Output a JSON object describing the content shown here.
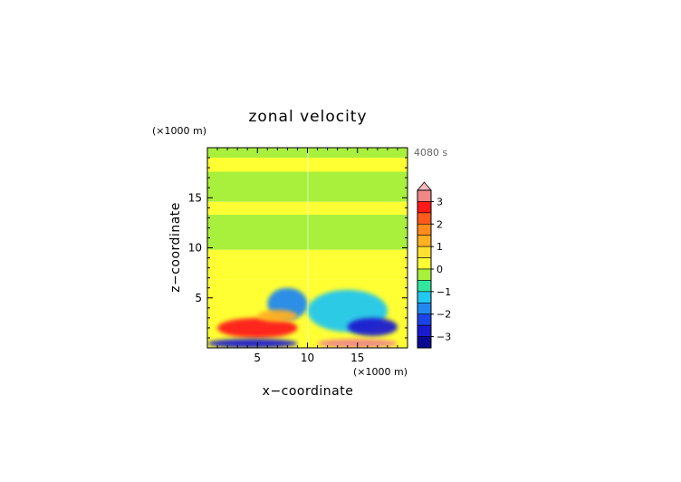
{
  "chart_data": {
    "type": "heatmap",
    "title": "zonal velocity",
    "xlabel": "x−coordinate",
    "ylabel": "z−coordinate",
    "x_units": "(×1000 m)",
    "y_units": "(×1000 m)",
    "time_label": "4080 s",
    "xlim": [
      0,
      20
    ],
    "ylim": [
      0,
      20
    ],
    "x_ticks": [
      "5",
      "10",
      "15"
    ],
    "y_ticks": [
      "5",
      "10",
      "15"
    ],
    "x_tick_values": [
      5,
      10,
      15
    ],
    "y_tick_values": [
      5,
      10,
      15
    ],
    "colorbar": {
      "ticks": [
        "3",
        "2",
        "1",
        "0",
        "−1",
        "−2",
        "−3"
      ],
      "tick_values": [
        3,
        2,
        1,
        0,
        -1,
        -2,
        -3
      ],
      "levels": [
        {
          "min": 3.25,
          "color": "#f4b8b8"
        },
        {
          "min": 3.0,
          "color": "#f08888"
        },
        {
          "min": 2.5,
          "color": "#ff1a1a"
        },
        {
          "min": 2.0,
          "color": "#ff5a1a"
        },
        {
          "min": 1.5,
          "color": "#ff8c1a"
        },
        {
          "min": 1.0,
          "color": "#ffb020"
        },
        {
          "min": 0.5,
          "color": "#ffe030"
        },
        {
          "min": 0.0,
          "color": "#ffff33"
        },
        {
          "min": -0.5,
          "color": "#a8f03c"
        },
        {
          "min": -1.0,
          "color": "#33e6a0"
        },
        {
          "min": -1.5,
          "color": "#22c8f0"
        },
        {
          "min": -2.0,
          "color": "#2288f0"
        },
        {
          "min": -2.5,
          "color": "#1a44e8"
        },
        {
          "min": -3.0,
          "color": "#1a1ad0"
        },
        {
          "min": -99,
          "color": "#0a0a90"
        }
      ]
    },
    "horizontal_bands": [
      {
        "z": [
          19,
          20
        ],
        "value": -0.2
      },
      {
        "z": [
          17.6,
          19
        ],
        "value": 0.2
      },
      {
        "z": [
          14.6,
          17.6
        ],
        "value": -0.2
      },
      {
        "z": [
          13.3,
          14.6
        ],
        "value": 0.2
      },
      {
        "z": [
          9.8,
          13.3
        ],
        "value": -0.2
      },
      {
        "z": [
          9.1,
          9.8
        ],
        "value": 0.2
      },
      {
        "z": [
          6.8,
          9.1
        ],
        "value": 0.3
      },
      {
        "z": [
          0,
          6.8
        ],
        "value": 0.2
      }
    ],
    "features": [
      {
        "x": [
          6,
          10
        ],
        "z": [
          2.8,
          6.0
        ],
        "value": -1.6
      },
      {
        "x": [
          10,
          18
        ],
        "z": [
          1.6,
          5.8
        ],
        "value": -1.2
      },
      {
        "x": [
          14,
          19
        ],
        "z": [
          1.2,
          3.0
        ],
        "value": -2.6
      },
      {
        "x": [
          1,
          9
        ],
        "z": [
          1.0,
          3.0
        ],
        "value": 2.6
      },
      {
        "x": [
          0,
          9
        ],
        "z": [
          0,
          0.9
        ],
        "value": -2.8
      },
      {
        "x": [
          11,
          19
        ],
        "z": [
          0,
          0.9
        ],
        "value": 3.1
      },
      {
        "x": [
          5,
          9
        ],
        "z": [
          2.6,
          3.8
        ],
        "value": 1.2
      }
    ]
  }
}
